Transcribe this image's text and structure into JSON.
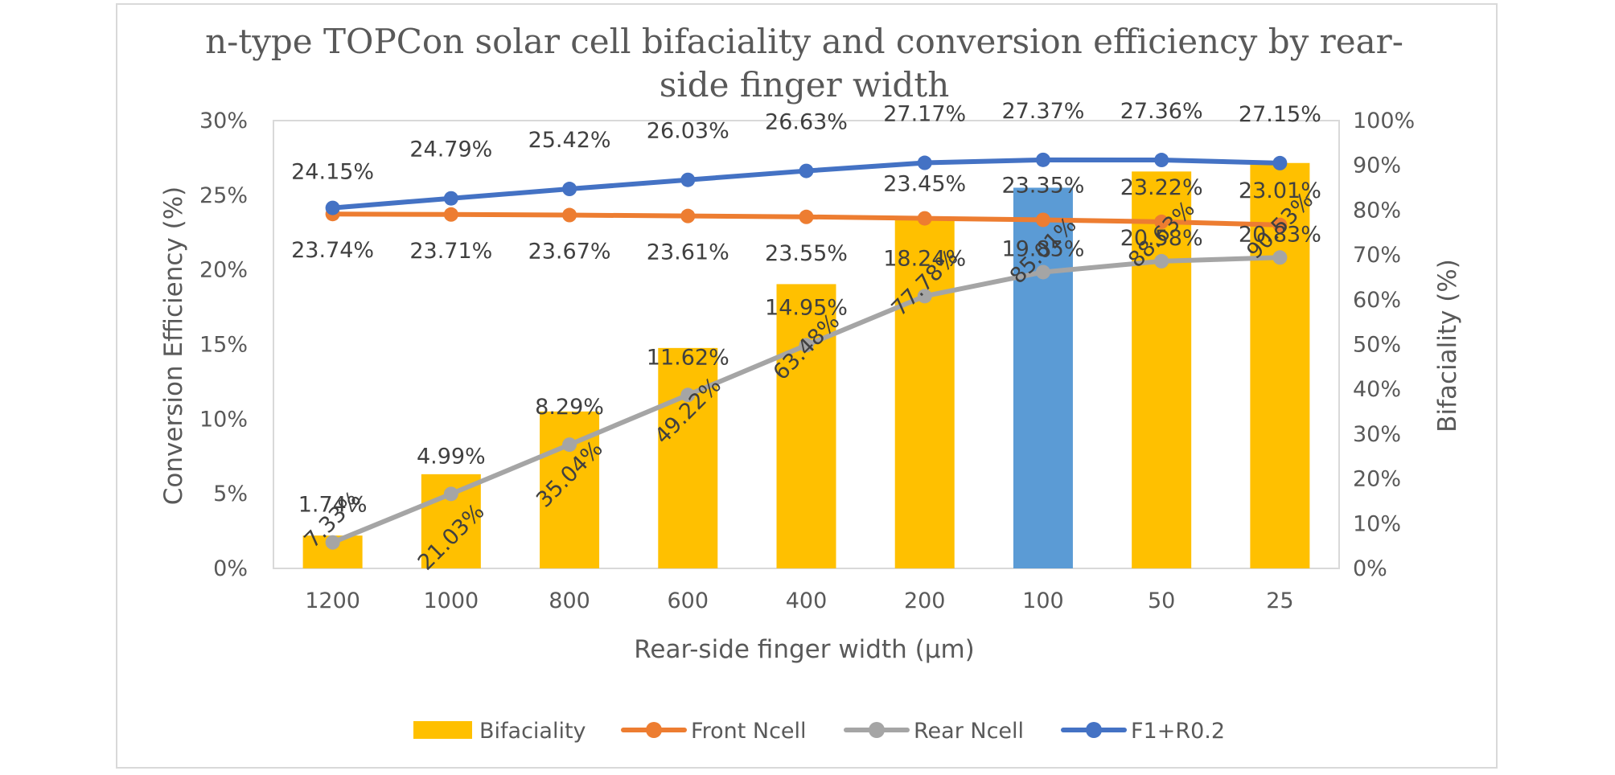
{
  "chart_data": {
    "type": "bar+line",
    "title_line1": "n-type TOPCon solar cell bifaciality and conversion efficiency by rear-",
    "title_line2": "side finger width",
    "xlabel": "Rear-side finger width (μm)",
    "ylabel_left": "Conversion Efficiency (%)",
    "ylabel_right": "Bifaciality (%)",
    "categories": [
      "1200",
      "1000",
      "800",
      "600",
      "400",
      "200",
      "100",
      "50",
      "25"
    ],
    "left_axis": {
      "min": 0,
      "max": 30,
      "step": 5,
      "ticks": [
        "0%",
        "5%",
        "10%",
        "15%",
        "20%",
        "25%",
        "30%"
      ]
    },
    "right_axis": {
      "min": 0,
      "max": 100,
      "step": 10,
      "ticks": [
        "0%",
        "10%",
        "20%",
        "30%",
        "40%",
        "50%",
        "60%",
        "70%",
        "80%",
        "90%",
        "100%"
      ]
    },
    "series": [
      {
        "name": "Bifaciality",
        "kind": "bar",
        "axis": "right",
        "color": "#ffc000",
        "highlight_color": "#5b9bd5",
        "highlight_index": 6,
        "values": [
          7.33,
          21.03,
          35.04,
          49.22,
          63.48,
          77.78,
          85.01,
          88.63,
          90.53
        ],
        "labels": [
          "7.33%",
          "21.03%",
          "35.04%",
          "49.22%",
          "63.48%",
          "77.78%",
          "85.01%",
          "88.63%",
          "90.53%"
        ]
      },
      {
        "name": "Front Ncell",
        "kind": "line",
        "axis": "left",
        "color": "#ed7d31",
        "values": [
          23.74,
          23.71,
          23.67,
          23.61,
          23.55,
          23.45,
          23.35,
          23.22,
          23.01
        ],
        "labels": [
          "23.74%",
          "23.71%",
          "23.67%",
          "23.61%",
          "23.55%",
          "23.45%",
          "23.35%",
          "23.22%",
          "23.01%"
        ]
      },
      {
        "name": "Rear Ncell",
        "kind": "line",
        "axis": "left",
        "color": "#a5a5a5",
        "values": [
          1.74,
          4.99,
          8.29,
          11.62,
          14.95,
          18.24,
          19.85,
          20.58,
          20.83
        ],
        "labels": [
          "1.74%",
          "4.99%",
          "8.29%",
          "11.62%",
          "14.95%",
          "18.24%",
          "19.85%",
          "20.58%",
          "20.83%"
        ]
      },
      {
        "name": "F1+R0.2",
        "kind": "line",
        "axis": "left",
        "color": "#4472c4",
        "values": [
          24.15,
          24.79,
          25.42,
          26.03,
          26.63,
          27.17,
          27.37,
          27.36,
          27.15
        ],
        "labels": [
          "24.15%",
          "24.79%",
          "25.42%",
          "26.03%",
          "26.63%",
          "27.17%",
          "27.37%",
          "27.36%",
          "27.15%"
        ]
      }
    ],
    "legend_position": "bottom"
  }
}
